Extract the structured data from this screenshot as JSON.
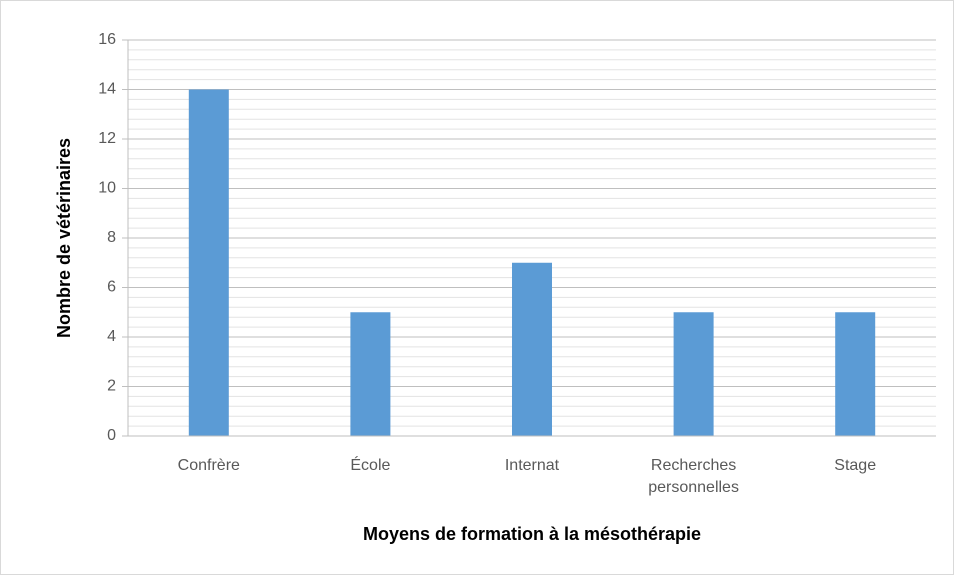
{
  "chart_data": {
    "type": "bar",
    "categories": [
      "Confrère",
      "École",
      "Internat",
      "Recherches personnelles",
      "Stage"
    ],
    "values": [
      14,
      5,
      7,
      5,
      5
    ],
    "color": "#5b9bd5",
    "x_label": "Moyens de formation à la mésothérapie",
    "y_label": "Nombre de vétérinaires",
    "ylim": [
      0,
      16
    ],
    "yticks": [
      0,
      2,
      4,
      6,
      8,
      10,
      12,
      14,
      16
    ],
    "grid": true
  }
}
